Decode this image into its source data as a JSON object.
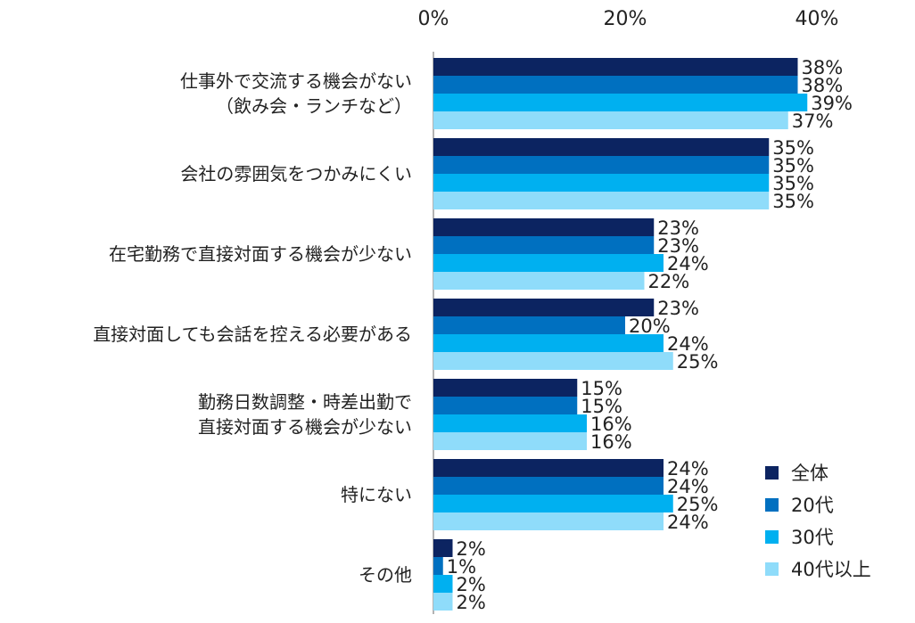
{
  "chart_data": {
    "type": "bar",
    "orientation": "horizontal",
    "title": "",
    "xlabel": "",
    "ylabel": "",
    "xlim": [
      0,
      40
    ],
    "x_ticks": [
      "0%",
      "20%",
      "40%"
    ],
    "grid": false,
    "legend_position": "bottom-right",
    "categories": [
      [
        "仕事外で交流する機会がない",
        "（飲み会・ランチなど）"
      ],
      [
        "会社の雰囲気をつかみにくい"
      ],
      [
        "在宅勤務で直接対面する機会が少ない"
      ],
      [
        "直接対面しても会話を控える必要がある"
      ],
      [
        "勤務日数調整・時差出勤で",
        "直接対面する機会が少ない"
      ],
      [
        "特にない"
      ],
      [
        "その他"
      ]
    ],
    "series": [
      {
        "name": "全体",
        "color": "#0c2461",
        "values": [
          38,
          35,
          23,
          23,
          15,
          24,
          2
        ]
      },
      {
        "name": "20代",
        "color": "#0070c0",
        "values": [
          38,
          35,
          23,
          20,
          15,
          24,
          1
        ]
      },
      {
        "name": "30代",
        "color": "#00b0f0",
        "values": [
          39,
          35,
          24,
          24,
          16,
          25,
          2
        ]
      },
      {
        "name": "40代以上",
        "color": "#8fdcfa",
        "values": [
          37,
          35,
          22,
          25,
          16,
          24,
          2
        ]
      }
    ],
    "value_suffix": "%"
  }
}
